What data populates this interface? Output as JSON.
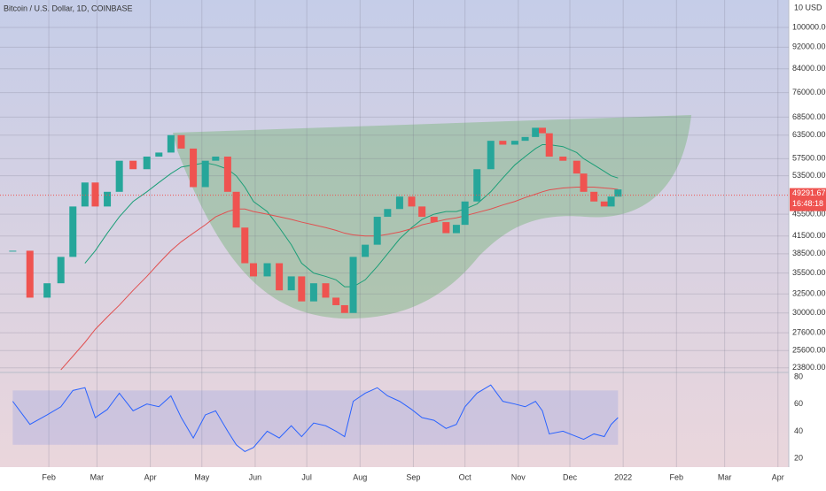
{
  "chart_data": {
    "type": "candlestick",
    "title": "Bitcoin / U.S. Dollar, 1D, COINBASE",
    "scale_header": "10 USD",
    "log_scale": true,
    "grid": true,
    "xlim": [
      2.6,
      461.3
    ],
    "xticks": [
      {
        "value": 31,
        "label": "Feb"
      },
      {
        "value": 59,
        "label": "Mar"
      },
      {
        "value": 90,
        "label": "Apr"
      },
      {
        "value": 120,
        "label": "May"
      },
      {
        "value": 151,
        "label": "Jun"
      },
      {
        "value": 181,
        "label": "Jul"
      },
      {
        "value": 212,
        "label": "Aug"
      },
      {
        "value": 243,
        "label": "Sep"
      },
      {
        "value": 273,
        "label": "Oct"
      },
      {
        "value": 304,
        "label": "Nov"
      },
      {
        "value": 334,
        "label": "Dec"
      },
      {
        "value": 365,
        "label": "2022"
      },
      {
        "value": 396,
        "label": "Feb"
      },
      {
        "value": 424,
        "label": "Mar"
      },
      {
        "value": 455,
        "label": "Apr"
      }
    ],
    "ylim": [
      23430,
      112260
    ],
    "yticks": [
      {
        "value": 100000,
        "label": "100000.00"
      },
      {
        "value": 92000,
        "label": "92000.00"
      },
      {
        "value": 84000,
        "label": "84000.00"
      },
      {
        "value": 76000,
        "label": "76000.00"
      },
      {
        "value": 68500,
        "label": "68500.00"
      },
      {
        "value": 63500,
        "label": "63500.00"
      },
      {
        "value": 57500,
        "label": "57500.00"
      },
      {
        "value": 53500,
        "label": "53500.00"
      },
      {
        "value": 45500,
        "label": "45500.00"
      },
      {
        "value": 41500,
        "label": "41500.00"
      },
      {
        "value": 38500,
        "label": "38500.00"
      },
      {
        "value": 35500,
        "label": "35500.00"
      },
      {
        "value": 32500,
        "label": "32500.00"
      },
      {
        "value": 30000,
        "label": "30000.00"
      },
      {
        "value": 27600,
        "label": "27600.00"
      },
      {
        "value": 25600,
        "label": "25600.00"
      },
      {
        "value": 23800,
        "label": "23800.00"
      }
    ],
    "last_price": 49291.67,
    "countdown": "16:48:18",
    "x": [
      10,
      20,
      30,
      38,
      45,
      52,
      58,
      65,
      72,
      80,
      88,
      95,
      102,
      108,
      115,
      122,
      128,
      135,
      140,
      145,
      150,
      158,
      165,
      172,
      178,
      185,
      192,
      198,
      203,
      208,
      215,
      222,
      228,
      235,
      242,
      248,
      255,
      262,
      268,
      273,
      280,
      288,
      295,
      302,
      308,
      314,
      318,
      322,
      330,
      338,
      342,
      348,
      354,
      358,
      362
    ],
    "series": [
      {
        "name": "Price",
        "color": "#26a69a",
        "color_down": "#ef5350",
        "values": [
          39000,
          32000,
          34000,
          38000,
          47000,
          52000,
          47000,
          50000,
          57000,
          55000,
          58000,
          59000,
          63500,
          60000,
          51000,
          57000,
          58000,
          50000,
          43000,
          37000,
          35000,
          37000,
          33000,
          35000,
          31500,
          34000,
          32000,
          31000,
          30000,
          38000,
          40000,
          45000,
          46500,
          49000,
          47000,
          45000,
          44000,
          42000,
          43500,
          48000,
          55000,
          62000,
          61000,
          62000,
          63000,
          65500,
          64000,
          58000,
          57000,
          54000,
          50000,
          48000,
          47000,
          49000,
          50500
        ]
      },
      {
        "name": "MA50",
        "color": "#1b9e77",
        "values": [
          null,
          null,
          null,
          null,
          null,
          37000,
          39000,
          42000,
          45000,
          48000,
          50000,
          52000,
          54000,
          55500,
          56000,
          56500,
          56000,
          55000,
          53500,
          51000,
          48000,
          46000,
          43000,
          40000,
          37000,
          35500,
          35000,
          34500,
          33500,
          33500,
          34500,
          36500,
          38500,
          41000,
          43000,
          44500,
          45500,
          46000,
          46000,
          46500,
          47500,
          50000,
          53000,
          56000,
          58000,
          60000,
          61000,
          61000,
          60500,
          59000,
          57500,
          56000,
          54500,
          53500,
          53000
        ]
      },
      {
        "name": "MA200",
        "color": "#e05050",
        "values": [
          null,
          null,
          null,
          23600,
          25000,
          26500,
          28000,
          29500,
          31000,
          33000,
          35000,
          37000,
          39000,
          40500,
          42000,
          43500,
          45000,
          46000,
          46500,
          46500,
          46000,
          45500,
          45000,
          44500,
          44000,
          43500,
          43000,
          42500,
          42000,
          41700,
          41500,
          41500,
          41800,
          42200,
          42800,
          43500,
          44000,
          44500,
          44800,
          45200,
          45800,
          46500,
          47300,
          48000,
          48800,
          49500,
          50000,
          50400,
          50800,
          51000,
          51000,
          51000,
          50800,
          50700,
          50500
        ]
      }
    ],
    "rsi": {
      "ylim": [
        15.5,
        82.6
      ],
      "yticks": [
        80,
        60,
        40,
        20
      ],
      "band": [
        30,
        70
      ],
      "color": "#2962ff",
      "values": [
        62,
        45,
        52,
        58,
        70,
        72,
        50,
        56,
        68,
        55,
        60,
        58,
        66,
        50,
        35,
        52,
        55,
        40,
        30,
        25,
        28,
        40,
        35,
        44,
        36,
        46,
        44,
        40,
        36,
        62,
        68,
        72,
        66,
        62,
        56,
        50,
        48,
        42,
        45,
        58,
        68,
        74,
        62,
        60,
        58,
        62,
        55,
        38,
        40,
        36,
        34,
        38,
        36,
        45,
        50
      ]
    }
  }
}
